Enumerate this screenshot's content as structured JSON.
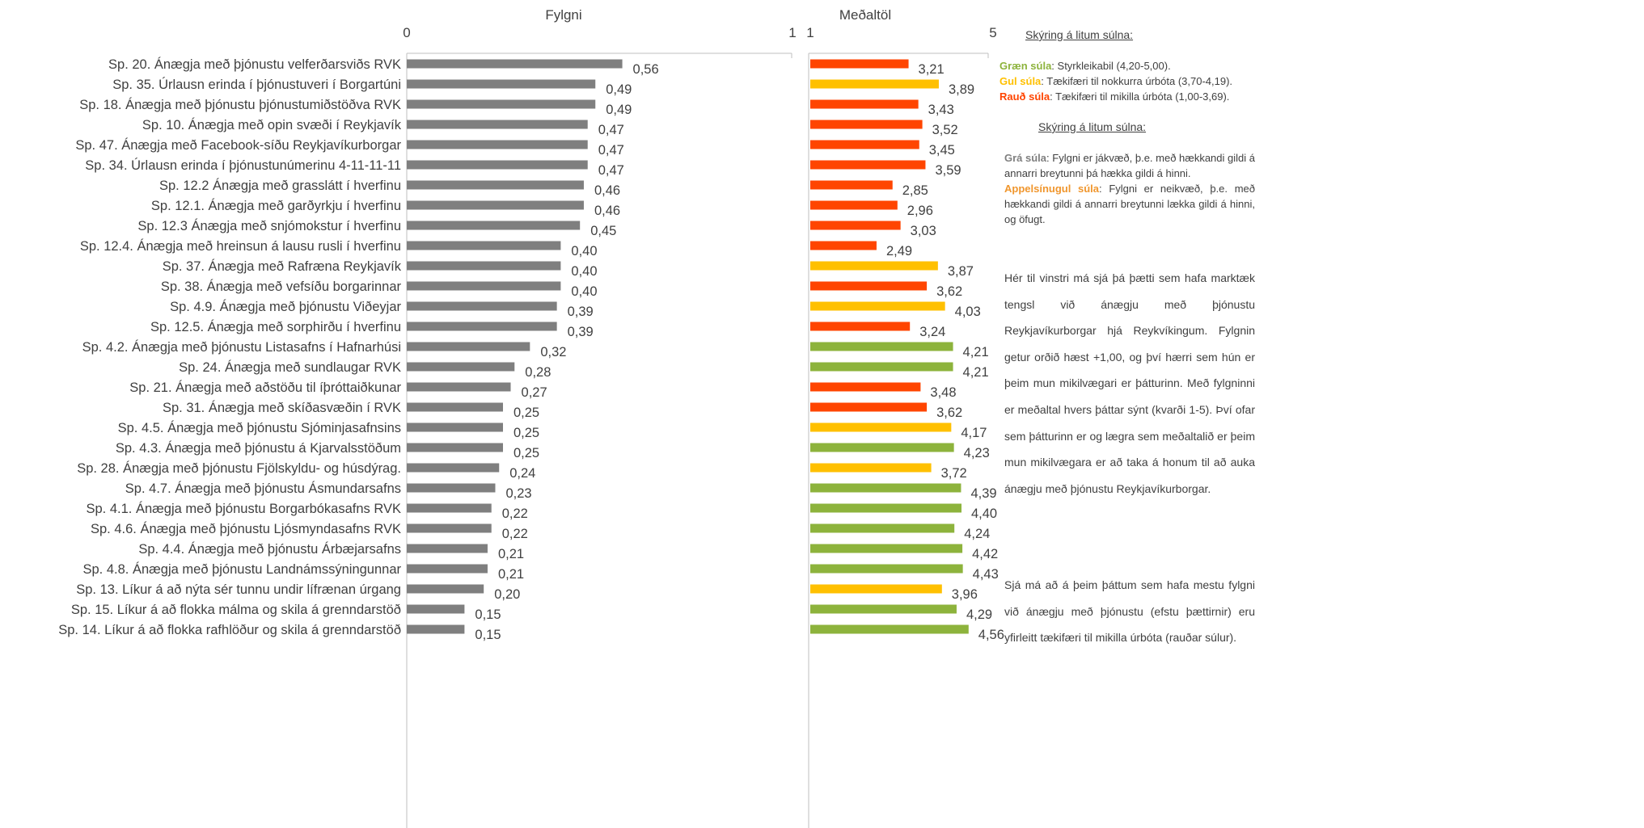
{
  "chart_data": [
    {
      "type": "bar",
      "orientation": "horizontal",
      "title": "Fylgni",
      "xlim": [
        0,
        1
      ],
      "tick_labels": [
        "0",
        "1"
      ],
      "bar_color": "#7f7f7f",
      "categories": [
        "Sp. 20. Ánægja með þjónustu velferðarsviðs RVK",
        "Sp. 35. Úrlausn erinda í þjónustuveri í Borgartúni",
        "Sp. 18. Ánægja með þjónustu þjónustumiðstöðva RVK",
        "Sp. 10. Ánægja með opin svæði í Reykjavík",
        "Sp. 47. Ánægja með Facebook-síðu Reykjavíkurborgar",
        "Sp. 34. Úrlausn erinda í þjónustunúmerinu 4-11-11-11",
        "Sp. 12.2 Ánægja með grasslátt í hverfinu",
        "Sp. 12.1. Ánægja með garðyrkju í hverfinu",
        "Sp. 12.3 Ánægja með snjómokstur í hverfinu",
        "Sp. 12.4. Ánægja með hreinsun á lausu rusli í hverfinu",
        "Sp. 37. Ánægja með Rafræna Reykjavík",
        "Sp. 38. Ánægja með vefsíðu borgarinnar",
        "Sp. 4.9. Ánægja með þjónustu Viðeyjar",
        "Sp. 12.5. Ánægja með sorphirðu í hverfinu",
        "Sp. 4.2. Ánægja með þjónustu Listasafns í Hafnarhúsi",
        "Sp. 24. Ánægja með sundlaugar RVK",
        "Sp. 21. Ánægja með aðstöðu til íþróttaiðkunar",
        "Sp. 31. Ánægja með skíðasvæðin í RVK",
        "Sp. 4.5. Ánægja með þjónustu Sjóminjasafnsins",
        "Sp. 4.3. Ánægja með þjónustu á Kjarvalsstöðum",
        "Sp. 28. Ánægja með þjónustu Fjölskyldu- og húsdýrag.",
        "Sp. 4.7. Ánægja með þjónustu Ásmundarsafns",
        "Sp. 4.1. Ánægja með þjónustu Borgarbókasafns RVK",
        "Sp. 4.6. Ánægja með þjónustu Ljósmyndasafns RVK",
        "Sp. 4.4. Ánægja með þjónustu Árbæjarsafns",
        "Sp. 4.8. Ánægja með þjónustu Landnámssýningunnar",
        "Sp. 13. Líkur á að nýta sér tunnu undir lífrænan úrgang",
        "Sp. 15. Líkur á að flokka málma og skila á grenndarstöð",
        "Sp. 14. Líkur á að flokka rafhlöður og skila á grenndarstöð"
      ],
      "values": [
        0.56,
        0.49,
        0.49,
        0.47,
        0.47,
        0.47,
        0.46,
        0.46,
        0.45,
        0.4,
        0.4,
        0.4,
        0.39,
        0.39,
        0.32,
        0.28,
        0.27,
        0.25,
        0.25,
        0.25,
        0.24,
        0.23,
        0.22,
        0.22,
        0.21,
        0.21,
        0.2,
        0.15,
        0.15
      ],
      "value_labels": [
        "0,56",
        "0,49",
        "0,49",
        "0,47",
        "0,47",
        "0,47",
        "0,46",
        "0,46",
        "0,45",
        "0,40",
        "0,40",
        "0,40",
        "0,39",
        "0,39",
        "0,32",
        "0,28",
        "0,27",
        "0,25",
        "0,25",
        "0,25",
        "0,24",
        "0,23",
        "0,22",
        "0,22",
        "0,21",
        "0,21",
        "0,20",
        "0,15",
        "0,15"
      ]
    },
    {
      "type": "bar",
      "orientation": "horizontal",
      "title": "Meðaltöl",
      "xlim": [
        1,
        5
      ],
      "tick_labels": [
        "1",
        "5"
      ],
      "values": [
        3.21,
        3.89,
        3.43,
        3.52,
        3.45,
        3.59,
        2.85,
        2.96,
        3.03,
        2.49,
        3.87,
        3.62,
        4.03,
        3.24,
        4.21,
        4.21,
        3.48,
        3.62,
        4.17,
        4.23,
        3.72,
        4.39,
        4.4,
        4.24,
        4.42,
        4.43,
        3.96,
        4.29,
        4.56
      ],
      "value_labels": [
        "3,21",
        "3,89",
        "3,43",
        "3,52",
        "3,45",
        "3,59",
        "2,85",
        "2,96",
        "3,03",
        "2,49",
        "3,87",
        "3,62",
        "4,03",
        "3,24",
        "4,21",
        "4,21",
        "3,48",
        "3,62",
        "4,17",
        "4,23",
        "3,72",
        "4,39",
        "4,40",
        "4,24",
        "4,42",
        "4,43",
        "3,96",
        "4,29",
        "4,56"
      ],
      "colors": {
        "green": "#8db33c",
        "yellow": "#ffc000",
        "red": "#ff4500"
      },
      "color_thresholds": {
        "green_min": 4.2,
        "yellow_min": 3.7
      }
    }
  ],
  "legend": {
    "heading1": "Skýring á litum súlna:",
    "green_bold": "Græn súla",
    "green_text": ": Styrkleikabil (4,20-5,00).",
    "yellow_bold": "Gul súla",
    "yellow_text": ": Tækifæri til nokkurra úrbóta (3,70-4,19).",
    "red_bold": "Rauð súla",
    "red_text": ": Tækifæri til mikilla úrbóta (1,00-3,69).",
    "heading2": "Skýring á litum súlna:",
    "grey_bold": "Grá súla",
    "grey_text": ": Fylgni er jákvæð, þ.e. með hækkandi gildi á annarri breytunni þá hækka gildi á hinni.",
    "orange_bold": "Appelsínugul súla",
    "orange_text": ": Fylgni er neikvæð, þ.e. með hækkandi gildi á annarri breytunni lækka gildi á hinni, og öfugt.",
    "text_colors": {
      "green": "#8db33c",
      "yellow": "#ffc000",
      "red": "#ff4500",
      "grey": "#7f7f7f",
      "orange": "#f0962d"
    }
  },
  "explanation": {
    "paragraph1": "Hér til vinstri má sjá þá þætti sem hafa marktæk tengsl við ánægju með þjónustu Reykjavíkurborgar hjá Reykvíkingum. Fylgnin getur orðið hæst +1,00, og því hærri sem hún er þeim mun mikilvægari er þátturinn. Með fylgninni er meðaltal hvers þáttar sýnt (kvarði 1-5). Því ofar sem þátturinn er og lægra sem meðaltalið er þeim mun mikilvægara er að taka á honum til að auka ánægju með þjónustu Reykjavíkurborgar.",
    "paragraph2": "Sjá má að á þeim þáttum sem hafa mestu fylgni við ánægju með þjónustu (efstu þættirnir) eru yfirleitt tækifæri til mikilla úrbóta (rauðar súlur)."
  }
}
